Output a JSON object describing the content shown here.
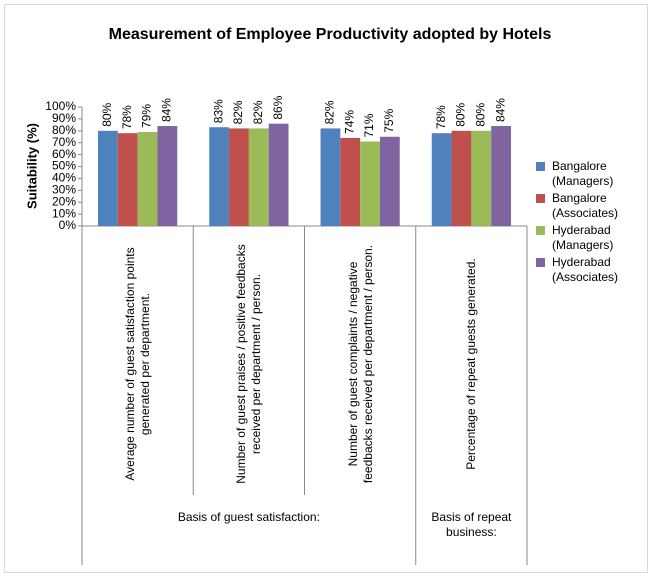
{
  "chart_data": {
    "type": "bar",
    "title": "Measurement of Employee Productivity adopted by Hotels",
    "y_label": "Suitability (%)",
    "categories": [
      "Average number of guest satisfaction points generated per department.",
      "Number of guest praises / positive feedbacks received per department / person.",
      "Number of guest complaints / negative feedbacks received per department / person.",
      "Percentage of repeat guests generated."
    ],
    "category_groups": [
      {
        "name": "Basis of guest satisfaction:",
        "count": 3
      },
      {
        "name": "Basis of repeat business:",
        "count": 1
      }
    ],
    "series": [
      {
        "name": "Bangalore (Managers)",
        "color": "#4f81bd",
        "values": [
          80,
          83,
          82,
          78
        ],
        "value_labels": [
          "80%",
          "83%",
          "82%",
          "78%"
        ]
      },
      {
        "name": "Bangalore (Associates)",
        "color": "#c0504d",
        "values": [
          78,
          82,
          74,
          80
        ],
        "value_labels": [
          "78%",
          "82%",
          "74%",
          "80%"
        ]
      },
      {
        "name": "Hyderabad (Managers)",
        "color": "#9bbb59",
        "values": [
          79,
          82,
          71,
          80
        ],
        "value_labels": [
          "79%",
          "82%",
          "71%",
          "80%"
        ]
      },
      {
        "name": "Hyderabad (Associates)",
        "color": "#8064a2",
        "values": [
          84,
          86,
          75,
          84
        ],
        "value_labels": [
          "84%",
          "86%",
          "75%",
          "84%"
        ]
      }
    ],
    "ylim": [
      0,
      100
    ],
    "yticks": [
      {
        "value": 0,
        "label": "0%"
      },
      {
        "value": 10,
        "label": "10%"
      },
      {
        "value": 20,
        "label": "20%"
      },
      {
        "value": 30,
        "label": "30%"
      },
      {
        "value": 40,
        "label": "40%"
      },
      {
        "value": 50,
        "label": "50%"
      },
      {
        "value": 60,
        "label": "60%"
      },
      {
        "value": 70,
        "label": "70%"
      },
      {
        "value": 80,
        "label": "80%"
      },
      {
        "value": 90,
        "label": "90%"
      },
      {
        "value": 100,
        "label": "100%"
      }
    ],
    "legend": "right"
  }
}
